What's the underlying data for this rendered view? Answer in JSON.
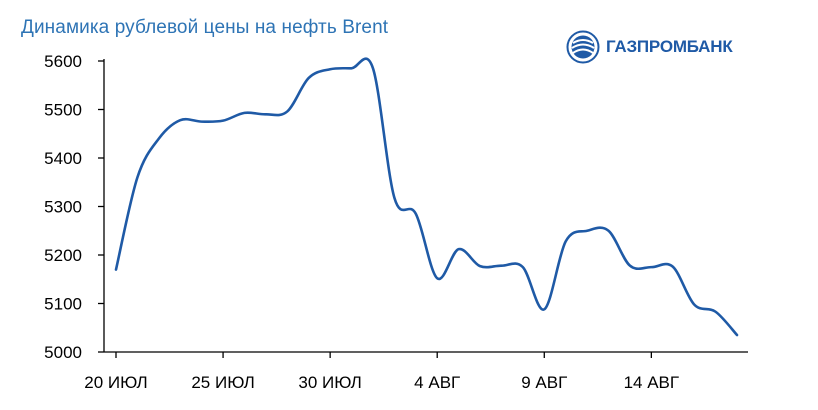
{
  "header": {
    "title": "Динамика рублевой цены на нефть Brent"
  },
  "logo": {
    "text": "ГАЗПРОМБАНК",
    "icon": "gazprombank-globe-icon"
  },
  "colors": {
    "line": "#1f5aa6",
    "title": "#2e74b5",
    "axis": "#000000"
  },
  "chart_data": {
    "type": "line",
    "title": "Динамика рублевой цены на нефть Brent",
    "xlabel": "",
    "ylabel": "",
    "grid": false,
    "ylim": [
      5000,
      5600
    ],
    "yticks": [
      5000,
      5100,
      5200,
      5300,
      5400,
      5500,
      5600
    ],
    "xlim": [
      "2018-07-20",
      "2018-08-18"
    ],
    "xticks": [
      {
        "date": "2018-07-20",
        "label": "20 ИЮЛ"
      },
      {
        "date": "2018-07-25",
        "label": "25 ИЮЛ"
      },
      {
        "date": "2018-07-30",
        "label": "30 ИЮЛ"
      },
      {
        "date": "2018-08-04",
        "label": "4 АВГ"
      },
      {
        "date": "2018-08-09",
        "label": "9 АВГ"
      },
      {
        "date": "2018-08-14",
        "label": "14 АВГ"
      }
    ],
    "series": [
      {
        "x": [
          "2018-07-20",
          "2018-07-21",
          "2018-07-22",
          "2018-07-23",
          "2018-07-24",
          "2018-07-25",
          "2018-07-26",
          "2018-07-27",
          "2018-07-28",
          "2018-07-29",
          "2018-07-30",
          "2018-07-31",
          "2018-08-01",
          "2018-08-02",
          "2018-08-03",
          "2018-08-04",
          "2018-08-05",
          "2018-08-06",
          "2018-08-07",
          "2018-08-08",
          "2018-08-09",
          "2018-08-10",
          "2018-08-11",
          "2018-08-12",
          "2018-08-13",
          "2018-08-14",
          "2018-08-15",
          "2018-08-16",
          "2018-08-17",
          "2018-08-18"
        ],
        "values": [
          5170,
          5360,
          5440,
          5478,
          5475,
          5477,
          5493,
          5490,
          5496,
          5565,
          5583,
          5585,
          5585,
          5318,
          5285,
          5152,
          5212,
          5177,
          5178,
          5175,
          5088,
          5228,
          5250,
          5250,
          5178,
          5175,
          5176,
          5098,
          5083,
          5035
        ]
      }
    ]
  }
}
